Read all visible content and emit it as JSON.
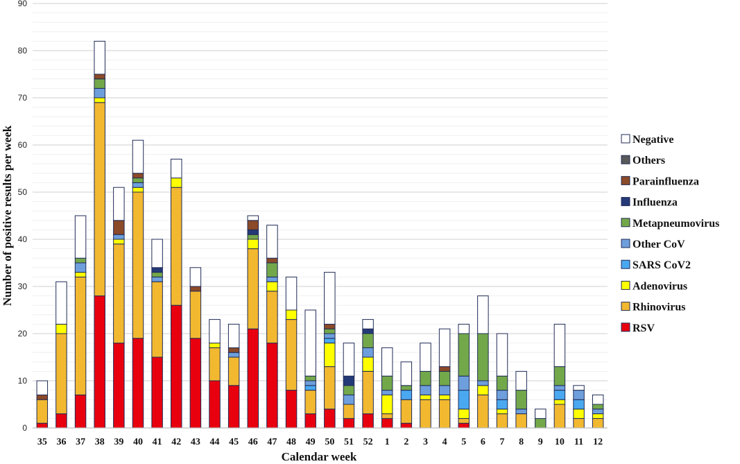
{
  "chart_data": {
    "type": "bar",
    "stacked": true,
    "title": "",
    "xlabel": "Calendar week",
    "ylabel": "Number of positive results per week",
    "ylim": [
      0,
      90
    ],
    "yticks": [
      0,
      10,
      20,
      30,
      40,
      50,
      60,
      70,
      80,
      90
    ],
    "grid": true,
    "legend_position": "right",
    "categories": [
      "35",
      "36",
      "37",
      "38",
      "39",
      "40",
      "41",
      "42",
      "43",
      "44",
      "45",
      "46",
      "47",
      "48",
      "49",
      "50",
      "51",
      "52",
      "1",
      "2",
      "3",
      "4",
      "5",
      "6",
      "7",
      "8",
      "9",
      "10",
      "11",
      "12"
    ],
    "series": [
      {
        "name": "RSV",
        "color": "#e8000f",
        "values": [
          1,
          3,
          7,
          28,
          18,
          19,
          15,
          26,
          19,
          10,
          9,
          21,
          18,
          8,
          3,
          4,
          2,
          3,
          2,
          1,
          0,
          0,
          1,
          0,
          0,
          0,
          0,
          0,
          0,
          0
        ]
      },
      {
        "name": "Rhinovirus",
        "color": "#f2b830",
        "values": [
          5,
          17,
          25,
          41,
          21,
          31,
          16,
          25,
          10,
          7,
          6,
          17,
          11,
          15,
          5,
          9,
          3,
          9,
          1,
          5,
          6,
          6,
          1,
          7,
          3,
          3,
          0,
          5,
          2,
          2
        ]
      },
      {
        "name": "Adenovirus",
        "color": "#ffff00",
        "values": [
          0,
          2,
          1,
          1,
          1,
          1,
          0,
          2,
          0,
          1,
          0,
          2,
          2,
          2,
          0,
          5,
          0,
          3,
          4,
          0,
          1,
          1,
          2,
          2,
          1,
          0,
          0,
          1,
          2,
          1
        ]
      },
      {
        "name": "SARS CoV2",
        "color": "#4aa8f0",
        "values": [
          0,
          0,
          0,
          0,
          0,
          0,
          0,
          0,
          0,
          0,
          0,
          0,
          0,
          0,
          1,
          1,
          0,
          0,
          0,
          2,
          0,
          0,
          4,
          0,
          2,
          0,
          0,
          2,
          2,
          0
        ]
      },
      {
        "name": "Other CoV",
        "color": "#6e9fdc",
        "values": [
          0,
          0,
          2,
          2,
          1,
          1,
          1,
          0,
          0,
          0,
          1,
          0,
          1,
          0,
          1,
          1,
          2,
          2,
          1,
          0,
          2,
          2,
          3,
          1,
          2,
          1,
          0,
          1,
          2,
          1
        ]
      },
      {
        "name": "Metapneumovirus",
        "color": "#73a84a",
        "values": [
          0,
          0,
          1,
          2,
          0,
          1,
          1,
          0,
          0,
          0,
          0,
          1,
          3,
          0,
          1,
          1,
          2,
          3,
          3,
          1,
          3,
          3,
          9,
          10,
          3,
          4,
          2,
          4,
          0,
          1
        ]
      },
      {
        "name": "Influenza",
        "color": "#243a78",
        "values": [
          0,
          0,
          0,
          0,
          0,
          0,
          1,
          0,
          0,
          0,
          0,
          1,
          0,
          0,
          0,
          0,
          2,
          1,
          0,
          0,
          0,
          0,
          0,
          0,
          0,
          0,
          0,
          0,
          0,
          0
        ]
      },
      {
        "name": "Parainfluenza",
        "color": "#8b4a28",
        "values": [
          1,
          0,
          0,
          1,
          3,
          1,
          0,
          0,
          1,
          0,
          1,
          2,
          1,
          0,
          0,
          1,
          0,
          0,
          0,
          0,
          0,
          1,
          0,
          0,
          0,
          0,
          0,
          0,
          0,
          0
        ]
      },
      {
        "name": "Others",
        "color": "#595959",
        "values": [
          0,
          0,
          0,
          0,
          0,
          0,
          0,
          0,
          0,
          0,
          0,
          0,
          0,
          0,
          0,
          0,
          0,
          0,
          0,
          0,
          0,
          0,
          0,
          0,
          0,
          0,
          0,
          0,
          0,
          0
        ]
      },
      {
        "name": "Negative",
        "color": "#ffffff",
        "values": [
          3,
          9,
          9,
          7,
          7,
          7,
          6,
          4,
          4,
          5,
          5,
          1,
          7,
          7,
          14,
          11,
          7,
          2,
          6,
          5,
          6,
          8,
          2,
          8,
          9,
          4,
          2,
          9,
          1,
          2
        ]
      }
    ]
  }
}
